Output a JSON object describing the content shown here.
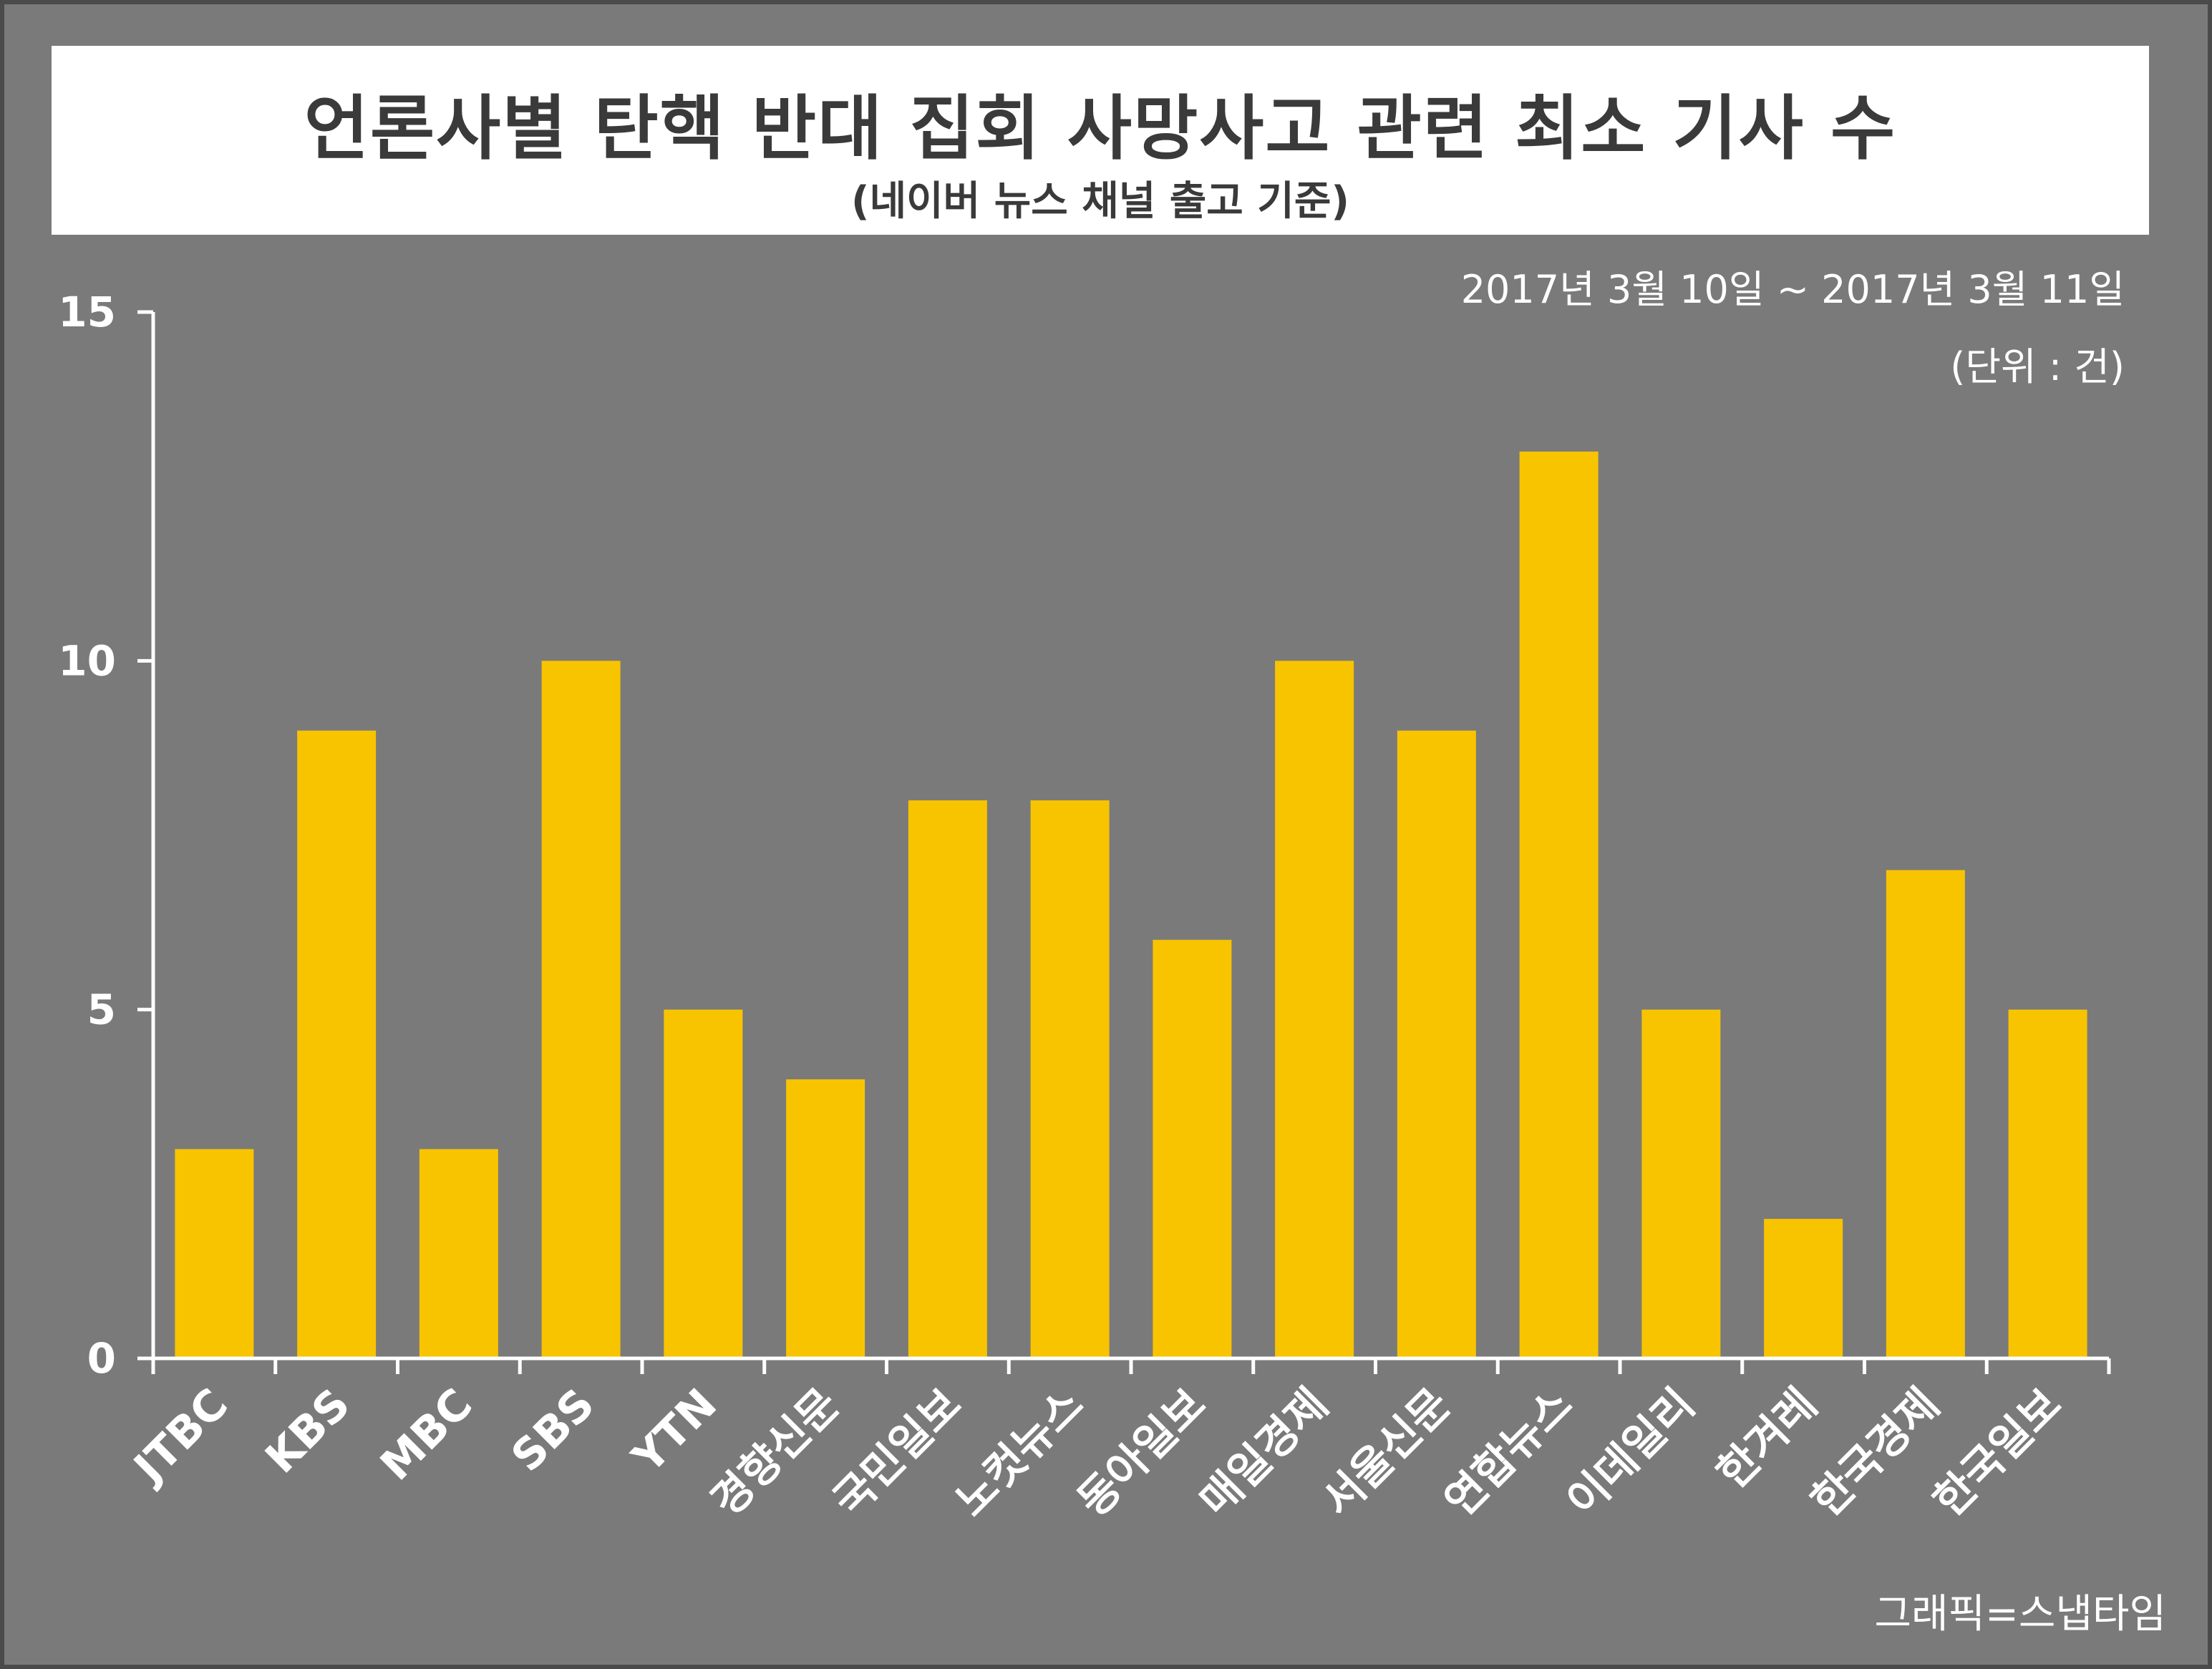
{
  "header": {
    "title": "언론사별 탄핵 반대 집회 사망사고 관련 최소 기사 수",
    "subtitle": "(네이버 뉴스 채널 출고 기준)"
  },
  "notes": {
    "period": "2017년 3월 10일 ~ 2017년 3월 11일",
    "unit": "(단위 : 건)"
  },
  "credit": "그래픽=스냅타임",
  "colors": {
    "background": "#7a7a7a",
    "bar": "#f8c400",
    "axis": "#ffffff"
  },
  "chart_data": {
    "type": "bar",
    "categories": [
      "JTBC",
      "KBS",
      "MBC",
      "SBS",
      "YTN",
      "경향신문",
      "국민일보",
      "노컷뉴스",
      "동아일보",
      "매일경제",
      "서울신문",
      "연합뉴스",
      "이데일리",
      "한겨레",
      "한국경제",
      "한국일보"
    ],
    "values": [
      3,
      9,
      3,
      10,
      5,
      4,
      8,
      8,
      6,
      10,
      9,
      13,
      5,
      2,
      7,
      5
    ],
    "yticks": [
      0,
      5,
      10,
      15
    ],
    "ylim": [
      0,
      15
    ],
    "grid": false,
    "legend": "none"
  }
}
